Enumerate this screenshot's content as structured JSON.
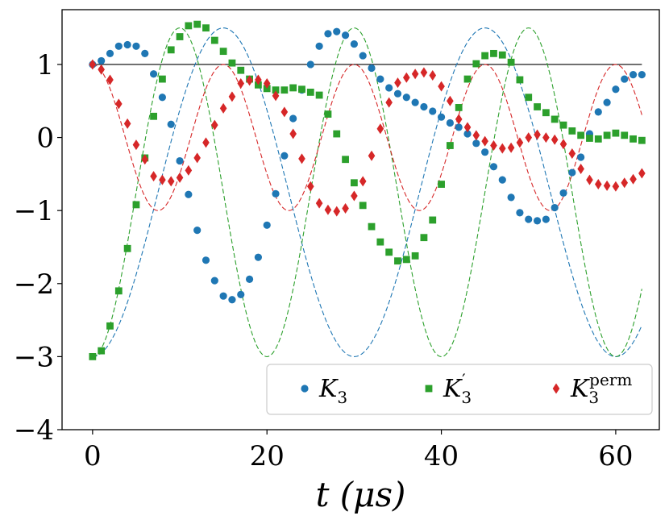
{
  "chart_data": {
    "type": "scatter",
    "title": "",
    "xlabel": "t (μs)",
    "ylabel": "",
    "xlim": [
      -3.5,
      65
    ],
    "ylim": [
      -4,
      1.75
    ],
    "xticks": [
      0,
      20,
      40,
      60
    ],
    "yticks": [
      1,
      0,
      -1,
      -2,
      -3,
      -4
    ],
    "xtick_labels": [
      "0",
      "20",
      "40",
      "60"
    ],
    "ytick_labels": [
      "1",
      "0",
      "−1",
      "−2",
      "−3",
      "−4"
    ],
    "grid": false,
    "legend_position": "lower-right",
    "reference_line": {
      "y": 1,
      "color": "#000000"
    },
    "series": [
      {
        "name": "K3",
        "legend_main": "K",
        "legend_sub": "3",
        "legend_sup": "",
        "marker": "circle",
        "color": "#1f77b4",
        "x": [
          0,
          1,
          2,
          3,
          4,
          5,
          6,
          7,
          8,
          9,
          10,
          11,
          12,
          13,
          14,
          15,
          16,
          17,
          18,
          19,
          20,
          21,
          22,
          23,
          24,
          25,
          26,
          27,
          28,
          29,
          30,
          31,
          32,
          33,
          34,
          35,
          36,
          37,
          38,
          39,
          40,
          41,
          42,
          43,
          44,
          45,
          46,
          47,
          48,
          49,
          50,
          51,
          52,
          53,
          54,
          55,
          56,
          57,
          58,
          59,
          60,
          61,
          62,
          63
        ],
        "y": [
          1.0,
          1.05,
          1.15,
          1.25,
          1.27,
          1.25,
          1.15,
          0.87,
          0.55,
          0.18,
          -0.32,
          -0.78,
          -1.27,
          -1.68,
          -1.96,
          -2.17,
          -2.22,
          -2.15,
          -1.94,
          -1.64,
          -1.2,
          -0.77,
          -0.25,
          0.26,
          0.65,
          1.0,
          1.25,
          1.42,
          1.45,
          1.4,
          1.28,
          1.12,
          0.95,
          0.8,
          0.68,
          0.6,
          0.55,
          0.48,
          0.42,
          0.36,
          0.28,
          0.2,
          0.14,
          0.05,
          -0.08,
          -0.2,
          -0.4,
          -0.58,
          -0.82,
          -1.03,
          -1.12,
          -1.14,
          -1.12,
          -0.96,
          -0.76,
          -0.48,
          -0.27,
          0.05,
          0.35,
          0.48,
          0.66,
          0.8,
          0.86,
          0.86
        ],
        "fit_color": "#1f77b4"
      },
      {
        "name": "K3'",
        "legend_main": "K",
        "legend_sub": "3",
        "legend_sup": "′",
        "marker": "square",
        "color": "#2ca02c",
        "x": [
          0,
          1,
          2,
          3,
          4,
          5,
          6,
          7,
          8,
          9,
          10,
          11,
          12,
          13,
          14,
          15,
          16,
          17,
          18,
          19,
          20,
          21,
          22,
          23,
          24,
          25,
          26,
          27,
          28,
          29,
          30,
          31,
          32,
          33,
          34,
          35,
          36,
          37,
          38,
          39,
          40,
          41,
          42,
          43,
          44,
          45,
          46,
          47,
          48,
          49,
          50,
          51,
          52,
          53,
          54,
          55,
          56,
          57,
          58,
          59,
          60,
          61,
          62,
          63
        ],
        "y": [
          -3.0,
          -2.92,
          -2.58,
          -2.1,
          -1.52,
          -0.92,
          -0.28,
          0.29,
          0.8,
          1.2,
          1.38,
          1.53,
          1.55,
          1.5,
          1.33,
          1.18,
          1.02,
          0.92,
          0.8,
          0.72,
          0.67,
          0.65,
          0.65,
          0.68,
          0.66,
          0.62,
          0.58,
          0.32,
          0.05,
          -0.3,
          -0.62,
          -0.93,
          -1.22,
          -1.43,
          -1.57,
          -1.69,
          -1.67,
          -1.62,
          -1.37,
          -1.13,
          -0.64,
          -0.11,
          0.41,
          0.8,
          1.01,
          1.12,
          1.15,
          1.13,
          1.03,
          0.79,
          0.55,
          0.42,
          0.34,
          0.25,
          0.17,
          0.09,
          0.03,
          -0.01,
          -0.02,
          0.03,
          0.06,
          0.03,
          -0.02,
          -0.04
        ],
        "fit_color": "#2ca02c"
      },
      {
        "name": "K3perm",
        "legend_main": "K",
        "legend_sub": "3",
        "legend_sup": "perm",
        "marker": "diamond",
        "color": "#d62728",
        "x": [
          0,
          1,
          2,
          3,
          4,
          5,
          6,
          7,
          8,
          9,
          10,
          11,
          12,
          13,
          14,
          15,
          16,
          17,
          18,
          19,
          20,
          21,
          22,
          23,
          24,
          25,
          26,
          27,
          28,
          29,
          30,
          31,
          32,
          33,
          34,
          35,
          36,
          37,
          38,
          39,
          40,
          41,
          42,
          43,
          44,
          45,
          46,
          47,
          48,
          49,
          50,
          51,
          52,
          53,
          54,
          55,
          56,
          57,
          58,
          59,
          60,
          61,
          62,
          63
        ],
        "y": [
          1.0,
          0.93,
          0.79,
          0.46,
          0.19,
          -0.1,
          -0.3,
          -0.53,
          -0.58,
          -0.6,
          -0.55,
          -0.45,
          -0.28,
          -0.07,
          0.17,
          0.4,
          0.56,
          0.74,
          0.78,
          0.79,
          0.74,
          0.57,
          0.35,
          0.05,
          -0.29,
          -0.67,
          -0.9,
          -0.99,
          -1.01,
          -0.97,
          -0.8,
          -0.6,
          -0.25,
          0.12,
          0.48,
          0.75,
          0.82,
          0.87,
          0.89,
          0.85,
          0.7,
          0.5,
          0.25,
          0.14,
          0.03,
          -0.05,
          -0.11,
          -0.15,
          -0.14,
          -0.07,
          0.0,
          0.04,
          0.0,
          -0.03,
          -0.09,
          -0.22,
          -0.43,
          -0.58,
          -0.64,
          -0.66,
          -0.67,
          -0.62,
          -0.57,
          -0.49
        ],
        "fit_color": "#d62728"
      }
    ],
    "fits": [
      {
        "series": "K3",
        "color": "#1f77b4",
        "mean": -0.75,
        "amp": -2.25,
        "period": 30,
        "phase": 0
      },
      {
        "series": "K3'",
        "color": "#2ca02c",
        "mean": -0.75,
        "amp": -2.25,
        "period": 20,
        "phase": 0
      },
      {
        "series": "K3perm",
        "color": "#d62728",
        "mean": 0.0,
        "amp": 1.0,
        "period": 15,
        "phase": 0
      }
    ]
  }
}
